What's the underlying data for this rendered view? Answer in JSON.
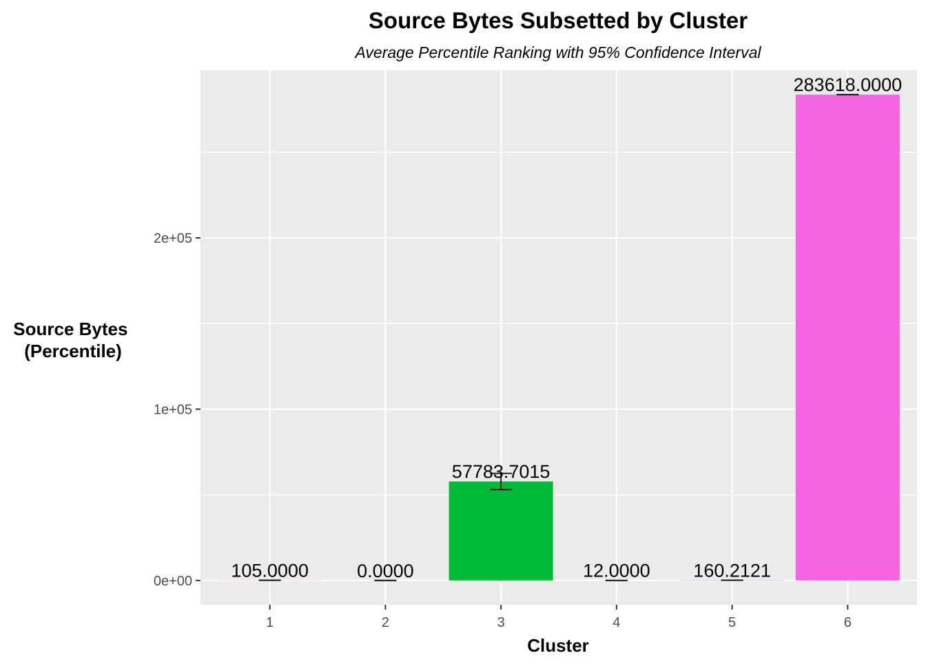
{
  "chart_data": {
    "type": "bar",
    "title": "Source Bytes Subsetted by Cluster",
    "subtitle": "Average Percentile Ranking with 95% Confidence Interval",
    "xlabel": "Cluster",
    "ylabel_lines": [
      "Source Bytes",
      "(Percentile)"
    ],
    "categories": [
      "1",
      "2",
      "3",
      "4",
      "5",
      "6"
    ],
    "values": [
      105.0,
      0.0,
      57783.7015,
      12.0,
      160.2121,
      283618.0
    ],
    "value_labels": [
      "105.0000",
      "0.0000",
      "57783.7015",
      "12.0000",
      "160.2121",
      "283618.0000"
    ],
    "ci_low": [
      105.0,
      0.0,
      53000,
      12.0,
      160.2121,
      283618.0
    ],
    "ci_high": [
      105.0,
      0.0,
      62500,
      12.0,
      160.2121,
      283618.0
    ],
    "bar_colors": [
      "#F8766D",
      "#B79F00",
      "#00BA38",
      "#00BFC4",
      "#619CFF",
      "#F564E3"
    ],
    "ylim": [
      -14180.9,
      297798.9
    ],
    "y_ticks": [
      0,
      100000,
      200000
    ],
    "y_tick_labels": [
      "0e+00",
      "1e+05",
      "2e+05"
    ],
    "grid": true,
    "legend": "none",
    "panel_background": "#EBEBEB",
    "grid_color": "#FFFFFF"
  }
}
